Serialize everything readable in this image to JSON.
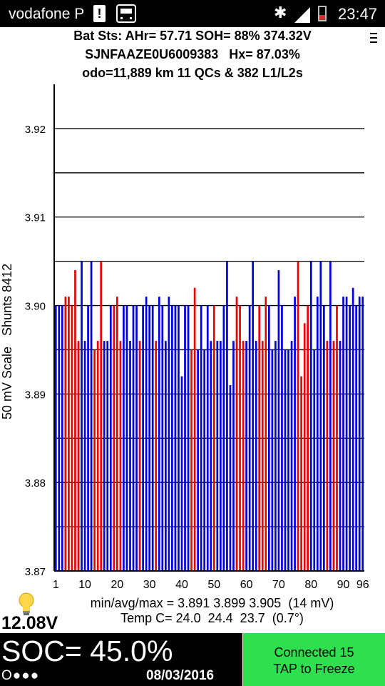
{
  "status_bar": {
    "carrier": "vodafone P",
    "notification_glyph": "!",
    "time": "23:47",
    "icons": [
      "notification-icon",
      "bus-app-icon",
      "bluetooth-icon",
      "signal-icon",
      "battery-icon"
    ]
  },
  "header": {
    "line1": "Bat Sts: AHr= 57.71 SOH= 88% 374.32V",
    "line2": "SJNFAAZE0U6009383   Hx= 87.03%",
    "line3": "odo=11,889 km 11 QCs & 382 L1/L2s"
  },
  "stats": {
    "line1": "min/avg/max = 3.891 3.899 3.905  (14 mV)",
    "line2": "Temp C= 24.0  24.4  23.7  (0.7°)"
  },
  "pack_voltage": "12.08V",
  "bottom": {
    "soc": "SOC= 45.0%",
    "dots": "O●●●",
    "date": "08/03/2016"
  },
  "connection": {
    "line1": "Connected 15",
    "line2": "TAP to Freeze",
    "color": "#2ee04e"
  },
  "chart_data": {
    "type": "bar",
    "ylabel": "50 mV Scale   Shunts 8412",
    "ylim": [
      3.87,
      3.925
    ],
    "y_ticks": [
      "3.87",
      "3.88",
      "3.89",
      "3.90",
      "3.91",
      "3.92"
    ],
    "x_ticks": [
      "1",
      "10",
      "20",
      "30",
      "40",
      "50",
      "60",
      "70",
      "80",
      "90",
      "96"
    ],
    "grid": true,
    "colors": {
      "normal": "#0000dd",
      "shunted": "#ee0000"
    },
    "x": [
      1,
      2,
      3,
      4,
      5,
      6,
      7,
      8,
      9,
      10,
      11,
      12,
      13,
      14,
      15,
      16,
      17,
      18,
      19,
      20,
      21,
      22,
      23,
      24,
      25,
      26,
      27,
      28,
      29,
      30,
      31,
      32,
      33,
      34,
      35,
      36,
      37,
      38,
      39,
      40,
      41,
      42,
      43,
      44,
      45,
      46,
      47,
      48,
      49,
      50,
      51,
      52,
      53,
      54,
      55,
      56,
      57,
      58,
      59,
      60,
      61,
      62,
      63,
      64,
      65,
      66,
      67,
      68,
      69,
      70,
      71,
      72,
      73,
      74,
      75,
      76,
      77,
      78,
      79,
      80,
      81,
      82,
      83,
      84,
      85,
      86,
      87,
      88,
      89,
      90,
      91,
      92,
      93,
      94,
      95,
      96
    ],
    "values": [
      3.9,
      3.9,
      3.9,
      3.901,
      3.901,
      3.9,
      3.904,
      3.896,
      3.905,
      3.896,
      3.9,
      3.905,
      3.895,
      3.896,
      3.905,
      3.896,
      3.896,
      3.9,
      3.9,
      3.901,
      3.896,
      3.9,
      3.9,
      3.896,
      3.9,
      3.9,
      3.896,
      3.9,
      3.901,
      3.9,
      3.9,
      3.896,
      3.901,
      3.9,
      3.896,
      3.901,
      3.9,
      3.9,
      3.9,
      3.892,
      3.9,
      3.9,
      3.895,
      3.902,
      3.895,
      3.9,
      3.895,
      3.9,
      3.896,
      3.9,
      3.896,
      3.896,
      3.9,
      3.905,
      3.891,
      3.896,
      3.901,
      3.9,
      3.896,
      3.896,
      3.9,
      3.905,
      3.896,
      3.9,
      3.896,
      3.901,
      3.9,
      3.895,
      3.896,
      3.904,
      3.9,
      3.895,
      3.895,
      3.896,
      3.901,
      3.905,
      3.892,
      3.898,
      3.9,
      3.905,
      3.895,
      3.901,
      3.905,
      3.9,
      3.896,
      3.905,
      3.896,
      3.9,
      3.896,
      3.901,
      3.901,
      3.9,
      3.902,
      3.9,
      3.901,
      3.901
    ],
    "shunted": [
      0,
      0,
      0,
      1,
      1,
      1,
      1,
      1,
      0,
      0,
      0,
      0,
      1,
      1,
      1,
      0,
      0,
      0,
      1,
      1,
      1,
      0,
      0,
      0,
      0,
      0,
      1,
      0,
      0,
      0,
      0,
      1,
      0,
      0,
      0,
      0,
      0,
      0,
      0,
      0,
      0,
      0,
      1,
      1,
      0,
      0,
      0,
      0,
      0,
      1,
      0,
      0,
      0,
      0,
      0,
      0,
      1,
      1,
      1,
      0,
      0,
      0,
      0,
      1,
      1,
      1,
      0,
      0,
      0,
      0,
      0,
      0,
      0,
      0,
      0,
      1,
      1,
      1,
      1,
      0,
      0,
      0,
      0,
      0,
      1,
      0,
      1,
      1,
      0,
      0,
      0,
      0,
      0,
      0,
      0,
      0
    ]
  }
}
